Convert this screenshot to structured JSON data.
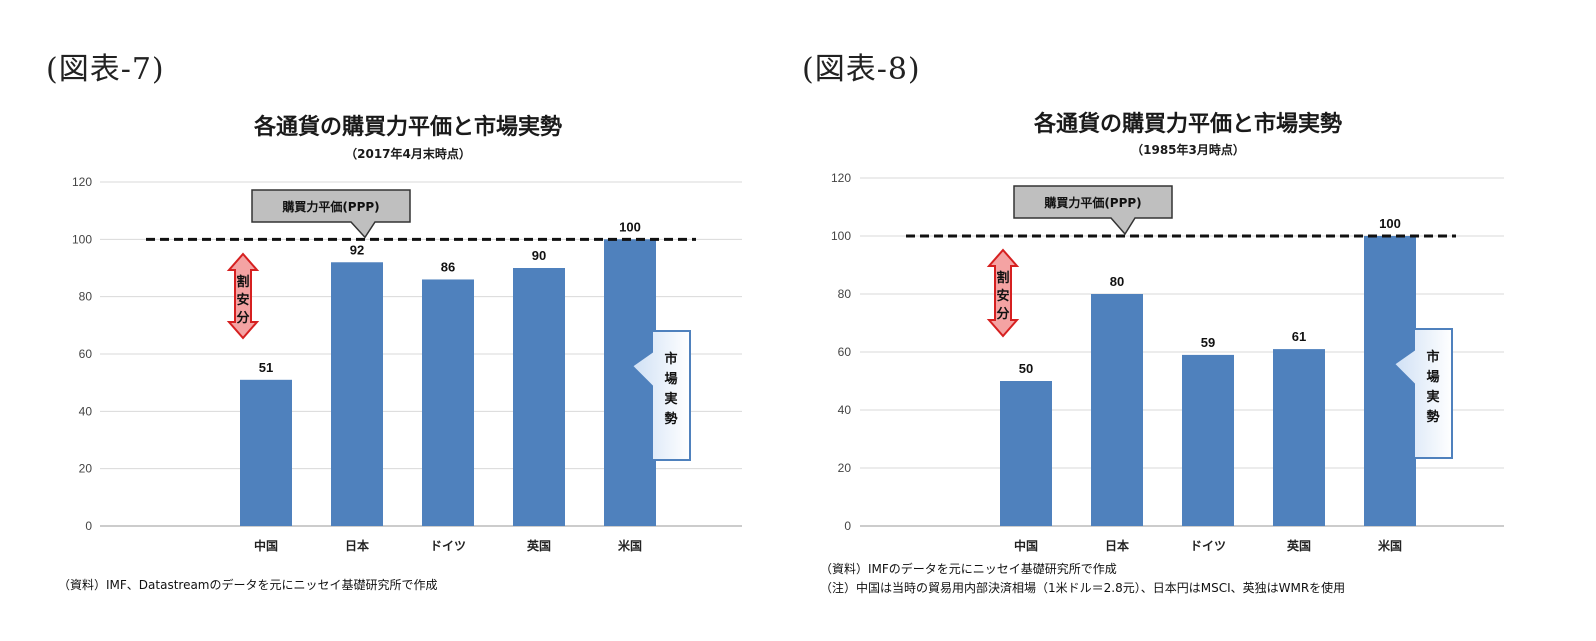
{
  "charts": [
    {
      "figure_label": "(図表-7)",
      "note_lines": [
        "（資料）IMF、Datastreamのデータを元にニッセイ基礎研究所で作成"
      ],
      "ppp_label": "購買力平価(PPP)",
      "undervalued_label": [
        "割",
        "安",
        "分"
      ],
      "market_label": [
        "市",
        "場",
        "実",
        "勢"
      ],
      "chart_data": {
        "type": "bar",
        "title": "各通貨の購買力平価と市場実勢",
        "subtitle": "（2017年4月末時点）",
        "categories": [
          "中国",
          "日本",
          "ドイツ",
          "英国",
          "米国"
        ],
        "values": [
          51,
          92,
          86,
          90,
          100
        ],
        "data_labels": [
          "51",
          "92",
          "86",
          "90",
          "100"
        ],
        "ylim": [
          0,
          120
        ],
        "yticks": [
          0,
          20,
          40,
          60,
          80,
          100,
          120
        ],
        "reference_line": 100,
        "grid": true,
        "bar_color": "#4f81bd"
      }
    },
    {
      "figure_label": "(図表-8)",
      "note_lines": [
        "（資料）IMFのデータを元にニッセイ基礎研究所で作成",
        "（注）中国は当時の貿易用内部決済相場（1米ドル＝2.8元）、日本円はMSCI、英独はWMRを使用"
      ],
      "ppp_label": "購買力平価(PPP)",
      "undervalued_label": [
        "割",
        "安",
        "分"
      ],
      "market_label": [
        "市",
        "場",
        "実",
        "勢"
      ],
      "chart_data": {
        "type": "bar",
        "title": "各通貨の購買力平価と市場実勢",
        "subtitle": "（1985年3月時点）",
        "categories": [
          "中国",
          "日本",
          "ドイツ",
          "英国",
          "米国"
        ],
        "values": [
          50,
          80,
          59,
          61,
          100
        ],
        "data_labels": [
          "50",
          "80",
          "59",
          "61",
          "100"
        ],
        "ylim": [
          0,
          120
        ],
        "yticks": [
          0,
          20,
          40,
          60,
          80,
          100,
          120
        ],
        "reference_line": 100,
        "grid": true,
        "bar_color": "#4f81bd"
      }
    }
  ]
}
